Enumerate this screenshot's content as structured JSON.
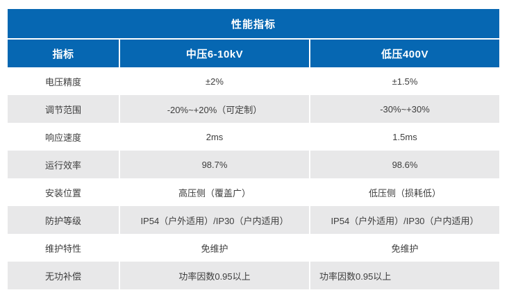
{
  "table": {
    "title": "性能指标",
    "columns": [
      "指标",
      "中压6-10kV",
      "低压400V"
    ],
    "rows": [
      {
        "label": "电压精度",
        "mv": "±2%",
        "lv": "±1.5%"
      },
      {
        "label": "调节范围",
        "mv": "-20%~+20%（可定制）",
        "lv": "-30%~+30%"
      },
      {
        "label": "响应速度",
        "mv": "2ms",
        "lv": "1.5ms"
      },
      {
        "label": "运行效率",
        "mv": "98.7%",
        "lv": "98.6%"
      },
      {
        "label": "安装位置",
        "mv": "高压侧（覆盖广）",
        "lv": "低压侧（损耗低）"
      },
      {
        "label": "防护等级",
        "mv": "IP54（户外适用）/IP30（户内适用）",
        "lv": "IP54（户外适用）/IP30（户内适用）"
      },
      {
        "label": "维护特性",
        "mv": "免维护",
        "lv": "免维护"
      },
      {
        "label": "无功补偿",
        "mv": "功率因数0.95以上",
        "lv": "功率因数0.95以上"
      }
    ]
  },
  "theme": {
    "header_bg": "#0667b2",
    "header_text": "#ffffff",
    "row_alt_bg": "#e8e8e9",
    "body_text": "#3d3d3d"
  }
}
